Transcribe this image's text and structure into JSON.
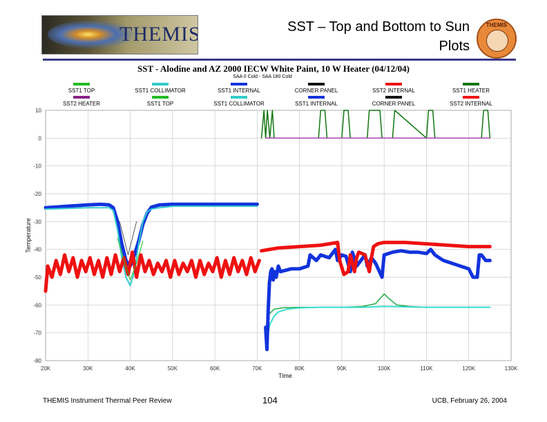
{
  "slide": {
    "title_line1": "SST – Top and Bottom to Sun",
    "title_line2": "Plots",
    "logo_word": "THEMIS",
    "seal_text": "THEMIS",
    "footer_left": "THEMIS Instrument Thermal Peer Review",
    "footer_center": "104",
    "footer_right": "UCB, February 26, 2004"
  },
  "chart_data": {
    "type": "line",
    "title": "SST -  Alodine and AZ 2000 IECW White Paint, 10 W Heater  (04/12/04)",
    "subtitle": "SAA 0 Cold - SAA 180 Cold",
    "xlabel": "Time",
    "ylabel": "Temperature",
    "xlim": [
      20000,
      130000
    ],
    "ylim": [
      -80,
      10
    ],
    "xticks": [
      20000,
      30000,
      40000,
      50000,
      60000,
      70000,
      80000,
      90000,
      100000,
      110000,
      120000,
      130000
    ],
    "xtick_labels": [
      "20K",
      "30K",
      "40K",
      "50K",
      "60K",
      "70K",
      "80K",
      "90K",
      "100K",
      "110K",
      "120K",
      "130K"
    ],
    "yticks": [
      10,
      0,
      -10,
      -20,
      -30,
      -40,
      -50,
      -60,
      -70,
      -80
    ],
    "ytick_labels": [
      "10",
      "0",
      "-10",
      "-20",
      "-30",
      "-40",
      "-50",
      "-60",
      "-70",
      "-80"
    ],
    "grid": true,
    "legend_placement": "top",
    "legend": [
      {
        "name": "SST1 TOP",
        "color": "#22bb22"
      },
      {
        "name": "SST1 COLLIMATOR",
        "color": "#33cccc"
      },
      {
        "name": "SST1 INTERNAL",
        "color": "#1133dd"
      },
      {
        "name": "CORNER PANEL",
        "color": "#111111"
      },
      {
        "name": "SST2 INTERNAL",
        "color": "#ee1111"
      },
      {
        "name": "SST1 HEATER",
        "color": "#117711"
      },
      {
        "name": "SST2 HEATER",
        "color": "#882288"
      },
      {
        "name": "SST1 TOP",
        "color": "#22bb22"
      },
      {
        "name": "SST1 COLLIMATOR",
        "color": "#33cccc"
      },
      {
        "name": "SST1 INTERNAL",
        "color": "#1133dd"
      },
      {
        "name": "CORNER PANEL",
        "color": "#111111"
      },
      {
        "name": "SST2 INTERNAL",
        "color": "#ee1111"
      }
    ],
    "series": [
      {
        "key": "sst1_internal_a",
        "color": "#1133dd",
        "width": 5,
        "x": [
          20000,
          25000,
          30000,
          33000,
          35000,
          36000,
          37000,
          38000,
          39000,
          40000,
          41000,
          42000,
          43000,
          44000,
          45000,
          47000,
          50000,
          55000,
          60000,
          65000,
          70000
        ],
        "y": [
          -25,
          -24.5,
          -24,
          -23.8,
          -24,
          -25,
          -30,
          -38,
          -44,
          -46,
          -42,
          -37,
          -31,
          -27,
          -24.8,
          -24,
          -23.8,
          -23.8,
          -23.8,
          -23.8,
          -23.8
        ]
      },
      {
        "key": "sst1_collimator_a",
        "color": "#33cccc",
        "width": 2,
        "x": [
          20000,
          30000,
          35000,
          36000,
          37000,
          38000,
          39000,
          40000,
          41000,
          42000,
          43000,
          44000,
          45000,
          47000,
          50000,
          60000,
          70000
        ],
        "y": [
          -25.5,
          -25,
          -25,
          -26,
          -33,
          -43,
          -50,
          -53,
          -48,
          -38,
          -30,
          -26.5,
          -25.5,
          -25,
          -24.5,
          -24.5,
          -24.5
        ]
      },
      {
        "key": "sst2_internal_a",
        "color": "#ee1111",
        "width": 5,
        "x": [
          20000,
          20500,
          21500,
          22500,
          23500,
          24500,
          25500,
          26500,
          27500,
          28500,
          29500,
          30500,
          31500,
          32500,
          33500,
          34500,
          35500,
          36500,
          37500,
          38500,
          39500,
          40500,
          41500,
          42500,
          43500,
          44500,
          45500,
          46500,
          47500,
          48500,
          49500,
          50500,
          51500,
          52500,
          53500,
          54500,
          55500,
          56500,
          57500,
          58500,
          59500,
          60500,
          61500,
          62500,
          63500,
          64500,
          65500,
          66500,
          67500,
          68500,
          69500,
          70500
        ],
        "y": [
          -55,
          -46,
          -50,
          -44,
          -49,
          -42,
          -48,
          -43,
          -50,
          -44,
          -48,
          -43,
          -49,
          -44,
          -50,
          -43,
          -49,
          -42,
          -48,
          -43,
          -49,
          -41,
          -50,
          -42,
          -48,
          -44,
          -49,
          -45,
          -48,
          -44,
          -50,
          -44,
          -49,
          -45,
          -48,
          -44,
          -50,
          -44,
          -49,
          -45,
          -48,
          -43,
          -50,
          -44,
          -49,
          -43,
          -48,
          -44,
          -49,
          -43,
          -48,
          -44
        ]
      },
      {
        "key": "sst1_top_a",
        "color": "#22bb22",
        "width": 1,
        "x": [
          37000,
          38500,
          40000,
          41500,
          43000
        ],
        "y": [
          -36,
          -44,
          -51,
          -45,
          -37
        ]
      },
      {
        "key": "sst1_heater",
        "color": "#117711",
        "width": 1.5,
        "x": [
          71000,
          71600,
          72000,
          72400,
          73000,
          73600,
          74000,
          84500,
          85000,
          86000,
          86500,
          90000,
          90500,
          91500,
          92000,
          96000,
          96500,
          99000,
          99500,
          102000,
          102500,
          110000,
          110500,
          111500,
          112000,
          123000,
          123500,
          124500,
          125000
        ],
        "y": [
          0,
          10,
          0,
          10,
          0,
          10,
          0,
          0,
          10,
          10,
          0,
          0,
          10,
          10,
          0,
          0,
          10,
          10,
          0,
          0,
          10,
          0,
          10,
          10,
          0,
          0,
          10,
          10,
          0
        ]
      },
      {
        "key": "sst2_heater",
        "color": "#aa44aa",
        "width": 1.5,
        "x": [
          72000,
          125000
        ],
        "y": [
          0,
          0
        ]
      },
      {
        "key": "sst1_top_b",
        "color": "#22aa44",
        "width": 1.5,
        "x": [
          73000,
          74000,
          76000,
          80000,
          85000,
          90000,
          95000,
          98000,
          100000,
          101000,
          103000,
          106000,
          110000,
          115000,
          125000
        ],
        "y": [
          -63,
          -61.5,
          -61,
          -60.8,
          -60.8,
          -60.8,
          -60.5,
          -59.5,
          -56,
          -57.5,
          -60,
          -60.5,
          -60.8,
          -60.8,
          -60.8
        ]
      },
      {
        "key": "sst1_collimator_b",
        "color": "#33ddcc",
        "width": 2,
        "x": [
          72000,
          72500,
          73000,
          74000,
          75000,
          77000,
          80000,
          85000,
          95000,
          100000,
          110000,
          125000
        ],
        "y": [
          -74,
          -71,
          -67,
          -64,
          -62.5,
          -61.5,
          -61,
          -60.8,
          -60.8,
          -60.5,
          -60.8,
          -60.8
        ]
      },
      {
        "key": "sst1_internal_b",
        "color": "#1133dd",
        "width": 5,
        "x": [
          72000,
          72300,
          72600,
          72900,
          73200,
          73500,
          73800,
          74100,
          74500,
          75000,
          75500,
          78000,
          80000,
          82000,
          82500,
          84000,
          85000,
          86000,
          87000,
          88500,
          89000,
          90000,
          91000,
          92000,
          92500,
          93500,
          94500,
          95500,
          96000,
          97000,
          98000,
          99500,
          100000,
          102000,
          104000,
          106000,
          108000,
          110000,
          111000,
          112000,
          114000,
          116000,
          118000,
          120000,
          121000,
          122000,
          122500,
          123000,
          124000,
          125000
        ],
        "y": [
          -68,
          -76,
          -62,
          -52,
          -48,
          -47,
          -51,
          -48,
          -50,
          -46,
          -48,
          -47,
          -47,
          -46,
          -42,
          -44,
          -42,
          -42.5,
          -43,
          -40,
          -44,
          -42,
          -42.5,
          -48,
          -41,
          -46,
          -44,
          -42,
          -46,
          -43,
          -45,
          -50,
          -42,
          -41,
          -40.5,
          -41,
          -41,
          -41.5,
          -40,
          -42,
          -44,
          -45,
          -46,
          -47,
          -50,
          -50,
          -42,
          -42,
          -44,
          -44
        ]
      },
      {
        "key": "sst2_internal_b",
        "color": "#ee1111",
        "width": 5,
        "x": [
          71000,
          75000,
          80000,
          85000,
          87000,
          89000,
          89500,
          90500,
          91500,
          92000,
          93000,
          93500,
          94000,
          95500,
          96500,
          97000,
          97500,
          98500,
          100000,
          105000,
          110000,
          115000,
          120000,
          125000
        ],
        "y": [
          -40.5,
          -39.5,
          -39,
          -38.5,
          -38,
          -37.5,
          -44,
          -49,
          -48,
          -42,
          -48,
          -43,
          -41,
          -42,
          -48,
          -43,
          -39,
          -38,
          -37.5,
          -37.5,
          -38,
          -38.5,
          -39,
          -39
        ]
      },
      {
        "key": "corner_panel",
        "color": "#333333",
        "width": 0.8,
        "x": [
          37500,
          38500,
          39500,
          40500,
          41500
        ],
        "y": [
          -30,
          -36,
          -42,
          -36,
          -30
        ]
      }
    ]
  }
}
